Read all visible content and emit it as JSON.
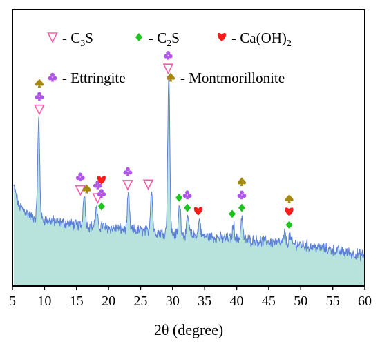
{
  "chart_data": {
    "type": "line",
    "title": "",
    "xlabel": "2θ (degree)",
    "ylabel": "",
    "xlim": [
      5,
      60
    ],
    "x_ticks": [
      5,
      10,
      15,
      20,
      25,
      30,
      35,
      40,
      45,
      50,
      55,
      60
    ],
    "grid": false,
    "colors": {
      "line": "#5a7fd6",
      "fill": "#b7e3dc",
      "C3S": "#ff5aa8",
      "C2S": "#1ec31e",
      "CaOH2": "#ff1a1a",
      "Ettringite": "#b055ea",
      "Montmorillonite": "#a48a12"
    },
    "baseline_profile": {
      "x": [
        5.2,
        6,
        7,
        8,
        10,
        15,
        20,
        25,
        30,
        35,
        40,
        45,
        50,
        55,
        60
      ],
      "y": [
        0.36,
        0.29,
        0.27,
        0.25,
        0.24,
        0.22,
        0.21,
        0.2,
        0.19,
        0.18,
        0.17,
        0.16,
        0.15,
        0.13,
        0.11
      ]
    },
    "peaks": [
      {
        "x": 9.1,
        "y": 0.6
      },
      {
        "x": 16.2,
        "y": 0.34
      },
      {
        "x": 18.1,
        "y": 0.28
      },
      {
        "x": 19.0,
        "y": 0.22
      },
      {
        "x": 23.1,
        "y": 0.33
      },
      {
        "x": 26.7,
        "y": 0.35
      },
      {
        "x": 29.4,
        "y": 0.77
      },
      {
        "x": 31.1,
        "y": 0.3
      },
      {
        "x": 32.4,
        "y": 0.25
      },
      {
        "x": 34.2,
        "y": 0.24
      },
      {
        "x": 39.5,
        "y": 0.22
      },
      {
        "x": 40.8,
        "y": 0.25
      },
      {
        "x": 47.5,
        "y": 0.19
      },
      {
        "x": 48.3,
        "y": 0.18
      }
    ],
    "markers": [
      {
        "x": 9.2,
        "stack": [
          "C3S",
          "Ettringite",
          "Montmorillonite"
        ]
      },
      {
        "x": 15.6,
        "stack": [
          "C3S",
          "Ettringite"
        ]
      },
      {
        "x": 16.6,
        "stack": [
          "Montmorillonite"
        ]
      },
      {
        "x": 18.3,
        "stack": [
          "C3S",
          "Ettringite"
        ]
      },
      {
        "x": 18.9,
        "stack": [
          "C2S",
          "Ettringite",
          "CaOH2"
        ]
      },
      {
        "x": 23.0,
        "stack": [
          "C3S",
          "Ettringite"
        ]
      },
      {
        "x": 26.2,
        "stack": [
          "C3S"
        ]
      },
      {
        "x": 29.3,
        "stack": [
          "C3S",
          "Ettringite"
        ]
      },
      {
        "x": 31.0,
        "stack": [
          "C2S"
        ]
      },
      {
        "x": 32.3,
        "stack": [
          "C2S",
          "Ettringite"
        ]
      },
      {
        "x": 34.0,
        "stack": [
          "CaOH2"
        ]
      },
      {
        "x": 39.3,
        "stack": [
          "C2S"
        ]
      },
      {
        "x": 40.8,
        "stack": [
          "C2S",
          "Ettringite",
          "Montmorillonite"
        ]
      },
      {
        "x": 48.2,
        "stack": [
          "C2S",
          "CaOH2",
          "Montmorillonite"
        ]
      }
    ],
    "legend": {
      "placement": "top",
      "entries": [
        {
          "key": "C3S",
          "text": "- C",
          "sub": "3",
          "tail": "S"
        },
        {
          "key": "C2S",
          "text": "- C",
          "sub": "2",
          "tail": "S"
        },
        {
          "key": "CaOH2",
          "text": "- Ca(OH)",
          "sub": "2",
          "tail": ""
        },
        {
          "key": "Ettringite",
          "text": "- Ettringite",
          "sub": "",
          "tail": ""
        },
        {
          "key": "Montmorillonite",
          "text": "- Montmorillonite",
          "sub": "",
          "tail": ""
        }
      ]
    }
  }
}
